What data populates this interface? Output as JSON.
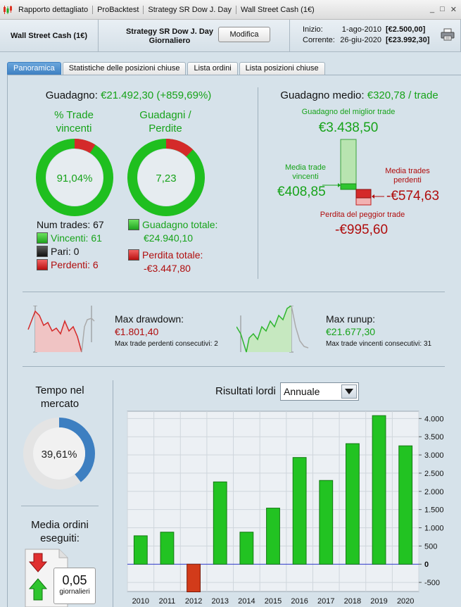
{
  "titlebar": {
    "segments": [
      "Rapporto dettagliato",
      "ProBacktest",
      "Strategy SR Dow J. Day",
      "Wall Street Cash (1€)"
    ],
    "controls": [
      "_",
      "□",
      "✕"
    ]
  },
  "infobar": {
    "instrument": "Wall Street Cash (1€)",
    "strategy_name": "Strategy SR Dow J. Day",
    "strategy_period": "Giornaliero",
    "modify_label": "Modifica",
    "start_label": "Inizio:",
    "start_date": "1-ago-2010",
    "start_capital": "[€2.500,00]",
    "current_label": "Corrente:",
    "current_date": "26-giu-2020",
    "current_capital": "[€23.992,30]"
  },
  "tabs": [
    {
      "label": "Panoramica",
      "active": true
    },
    {
      "label": "Statistiche delle posizioni chiuse",
      "active": false
    },
    {
      "label": "Lista ordini",
      "active": false
    },
    {
      "label": "Lista posizioni chiuse",
      "active": false
    }
  ],
  "overview": {
    "gain_label": "Guadagno:",
    "gain_value": "€21.492,30 (+859,69%)",
    "win_pct_title_1": "% Trade",
    "win_pct_title_2": "vincenti",
    "win_pct_value": "91,04%",
    "win_fraction": 0.9104,
    "gl_title_1": "Guadagni /",
    "gl_title_2": "Perdite",
    "gl_value": "7,23",
    "gl_fraction": 0.878,
    "num_trades": "Num trades: 67",
    "winners": "Vincenti: 61",
    "even": "Pari: 0",
    "losers": "Perdenti: 6",
    "total_gain_label": "Guadagno totale:",
    "total_gain_value": "€24.940,10",
    "total_loss_label": "Perdita totale:",
    "total_loss_value": "-€3.447,80"
  },
  "average": {
    "label": "Guadagno medio:",
    "value": "€320,78 / trade",
    "best_label": "Guadagno del miglior trade",
    "best_value": "€3.438,50",
    "avg_win_label_1": "Media trade",
    "avg_win_label_2": "vincenti",
    "avg_win_value": "€408,85",
    "avg_loss_label_1": "Media trades",
    "avg_loss_label_2": "perdenti",
    "avg_loss_value": "-€574,63",
    "worst_label": "Perdita del peggior trade",
    "worst_value": "-€995,60"
  },
  "drawdown": {
    "label": "Max drawdown:",
    "value": "€1.801,40",
    "consec_label": "Max trade perdenti consecutivi:",
    "consec_value": "2"
  },
  "runup": {
    "label": "Max runup:",
    "value": "€21.677,30",
    "consec_label": "Max trade vincenti consecutivi:",
    "consec_value": "31"
  },
  "market_time": {
    "title_1": "Tempo nel",
    "title_2": "mercato",
    "value": "39,61%",
    "fraction": 0.3961
  },
  "orders": {
    "title_1": "Media ordini",
    "title_2": "eseguiti:",
    "value": "0,05",
    "unit": "giornalieri"
  },
  "results": {
    "label": "Risultati lordi",
    "period": "Annuale"
  },
  "colors": {
    "gain": "#17a31a",
    "loss": "#b00d0d",
    "accent": "#3d7fc1"
  },
  "chart_data": {
    "type": "bar",
    "title": "Risultati lordi",
    "categories": [
      "2010",
      "2011",
      "2012",
      "2013",
      "2014",
      "2015",
      "2016",
      "2017",
      "2018",
      "2019",
      "2020"
    ],
    "values": [
      780,
      880,
      -760,
      2260,
      880,
      1540,
      2930,
      2300,
      3310,
      4080,
      3250
    ],
    "ylim": [
      -750,
      4200
    ],
    "yticks": [
      -500,
      0,
      500,
      1000,
      1500,
      2000,
      2500,
      3000,
      3500,
      4000
    ],
    "ytick_labels": [
      "-500",
      "0",
      "500",
      "1.000",
      "1.500",
      "2.000",
      "2.500",
      "3.000",
      "3.500",
      "4.000"
    ],
    "grid": true
  }
}
